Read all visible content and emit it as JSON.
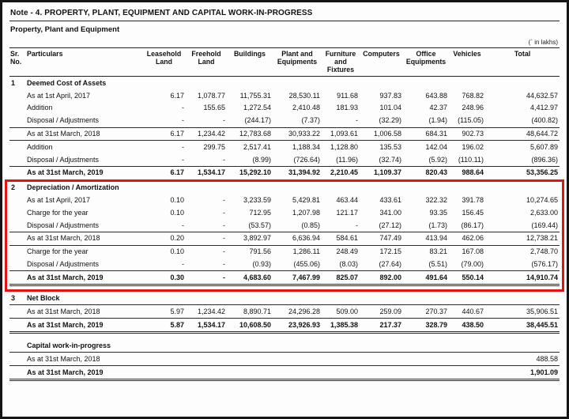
{
  "page": {
    "title": "Note - 4. PROPERTY, PLANT, EQUIPMENT AND CAPITAL WORK-IN-PROGRESS",
    "subtitle": "Property, Plant and Equipment",
    "unit_note": "(` in lakhs)"
  },
  "table": {
    "headers": {
      "sr": "Sr.\nNo.",
      "particulars": "Particulars",
      "cols": [
        "Leasehold Land",
        "Freehold Land",
        "Buildings",
        "Plant and Equipments",
        "Furniture and Fixtures",
        "Computers",
        "Office Equipments",
        "Vehicles",
        "Total"
      ]
    },
    "rows": [
      {
        "kind": "section",
        "sr": "1",
        "label": "Deemed Cost of Assets",
        "values": []
      },
      {
        "kind": "item",
        "sr": "",
        "label": "As at 1st April, 2017",
        "values": [
          "6.17",
          "1,078.77",
          "11,755.31",
          "28,530.11",
          "911.68",
          "937.83",
          "643.88",
          "768.82",
          "44,632.57"
        ]
      },
      {
        "kind": "item",
        "sr": "",
        "label": "Addition",
        "values": [
          "-",
          "155.65",
          "1,272.54",
          "2,410.48",
          "181.93",
          "101.04",
          "42.37",
          "248.96",
          "4,412.97"
        ]
      },
      {
        "kind": "item",
        "sr": "",
        "label": "Disposal / Adjustments",
        "values": [
          "-",
          "-",
          "(244.17)",
          "(7.37)",
          "-",
          "(32.29)",
          "(1.94)",
          "(115.05)",
          "(400.82)"
        ]
      },
      {
        "kind": "subtotal",
        "sr": "",
        "label": "As at 31st March, 2018",
        "values": [
          "6.17",
          "1,234.42",
          "12,783.68",
          "30,933.22",
          "1,093.61",
          "1,006.58",
          "684.31",
          "902.73",
          "48,644.72"
        ]
      },
      {
        "kind": "item",
        "sr": "",
        "label": "Addition",
        "values": [
          "-",
          "299.75",
          "2,517.41",
          "1,188.34",
          "1,128.80",
          "135.53",
          "142.04",
          "196.02",
          "5,607.89"
        ]
      },
      {
        "kind": "item",
        "sr": "",
        "label": "Disposal / Adjustments",
        "values": [
          "-",
          "-",
          "(8.99)",
          "(726.64)",
          "(11.96)",
          "(32.74)",
          "(5.92)",
          "(110.11)",
          "(896.36)"
        ]
      },
      {
        "kind": "total",
        "sr": "",
        "label": "As at 31st March, 2019",
        "values": [
          "6.17",
          "1,534.17",
          "15,292.10",
          "31,394.92",
          "2,210.45",
          "1,109.37",
          "820.43",
          "988.64",
          "53,356.25"
        ]
      },
      {
        "kind": "section",
        "sr": "2",
        "label": "Depreciation / Amortization",
        "values": []
      },
      {
        "kind": "item",
        "sr": "",
        "label": "As at 1st April, 2017",
        "values": [
          "0.10",
          "-",
          "3,233.59",
          "5,429.81",
          "463.44",
          "433.61",
          "322.32",
          "391.78",
          "10,274.65"
        ]
      },
      {
        "kind": "item",
        "sr": "",
        "label": "Charge for the year",
        "values": [
          "0.10",
          "-",
          "712.95",
          "1,207.98",
          "121.17",
          "341.00",
          "93.35",
          "156.45",
          "2,633.00"
        ]
      },
      {
        "kind": "item",
        "sr": "",
        "label": "Disposal / Adjustments",
        "values": [
          "-",
          "-",
          "(53.57)",
          "(0.85)",
          "-",
          "(27.12)",
          "(1.73)",
          "(86.17)",
          "(169.44)"
        ]
      },
      {
        "kind": "subtotal",
        "sr": "",
        "label": "As at 31st March, 2018",
        "values": [
          "0.20",
          "-",
          "3,892.97",
          "6,636.94",
          "584.61",
          "747.49",
          "413.94",
          "462.06",
          "12,738.21"
        ]
      },
      {
        "kind": "item",
        "sr": "",
        "label": "Charge for the year",
        "values": [
          "0.10",
          "-",
          "791.56",
          "1,286.11",
          "248.49",
          "172.15",
          "83.21",
          "167.08",
          "2,748.70"
        ]
      },
      {
        "kind": "item",
        "sr": "",
        "label": "Disposal / Adjustments",
        "values": [
          "-",
          "-",
          "(0.93)",
          "(455.06)",
          "(8.03)",
          "(27.64)",
          "(5.51)",
          "(79.00)",
          "(576.17)"
        ]
      },
      {
        "kind": "total",
        "sr": "",
        "label": "As at 31st March, 2019",
        "values": [
          "0.30",
          "-",
          "4,683.60",
          "7,467.99",
          "825.07",
          "892.00",
          "491.64",
          "550.14",
          "14,910.74"
        ]
      },
      {
        "kind": "spacer",
        "sr": "",
        "label": "",
        "values": []
      },
      {
        "kind": "section",
        "sr": "3",
        "label": "Net Block",
        "values": []
      },
      {
        "kind": "subtotal",
        "sr": "",
        "label": "As at 31st March, 2018",
        "values": [
          "5.97",
          "1,234.42",
          "8,890.71",
          "24,296.28",
          "509.00",
          "259.09",
          "270.37",
          "440.67",
          "35,906.51"
        ]
      },
      {
        "kind": "total",
        "sr": "",
        "label": "As at 31st March, 2019",
        "values": [
          "5.87",
          "1,534.17",
          "10,608.50",
          "23,926.93",
          "1,385.38",
          "217.37",
          "328.79",
          "438.50",
          "38,445.51"
        ]
      },
      {
        "kind": "spacer",
        "sr": "",
        "label": "",
        "values": []
      },
      {
        "kind": "section",
        "sr": "",
        "label": "Capital work-in-progress",
        "values": []
      },
      {
        "kind": "subtotal",
        "sr": "",
        "label": "As at 31st March, 2018",
        "values": [
          "",
          "",
          "",
          "",
          "",
          "",
          "",
          "",
          "488.58"
        ]
      },
      {
        "kind": "total",
        "sr": "",
        "label": "As at 31st March, 2019",
        "values": [
          "",
          "",
          "",
          "",
          "",
          "",
          "",
          "",
          "1,901.09"
        ]
      }
    ],
    "highlight": {
      "color": "#e01414",
      "from_row": 8,
      "to_row": 15
    }
  }
}
